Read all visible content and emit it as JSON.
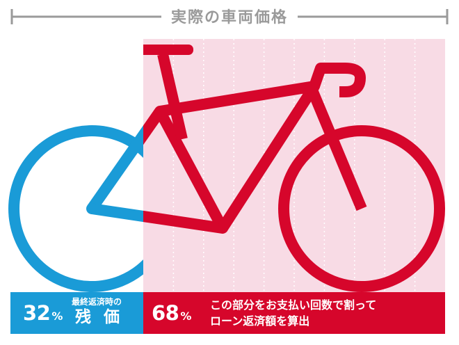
{
  "title": "実際の車両価格",
  "colors": {
    "blue": "#1a9bd7",
    "red": "#d6062b",
    "pink_band": "#f8dbe5",
    "gray_ruler": "#9a9a9a"
  },
  "residual": {
    "percent": "32",
    "percent_sign": "%",
    "caption_top": "最終返済時の",
    "caption_main": "残価"
  },
  "installment": {
    "percent": "68",
    "percent_sign": "%",
    "caption_line1": "この部分をお支払い回数で割って",
    "caption_line2": "ローン返済額を算出"
  },
  "split_fraction": 0.32,
  "installment_column_count": 10,
  "icons": [
    "bicycle-icon"
  ]
}
